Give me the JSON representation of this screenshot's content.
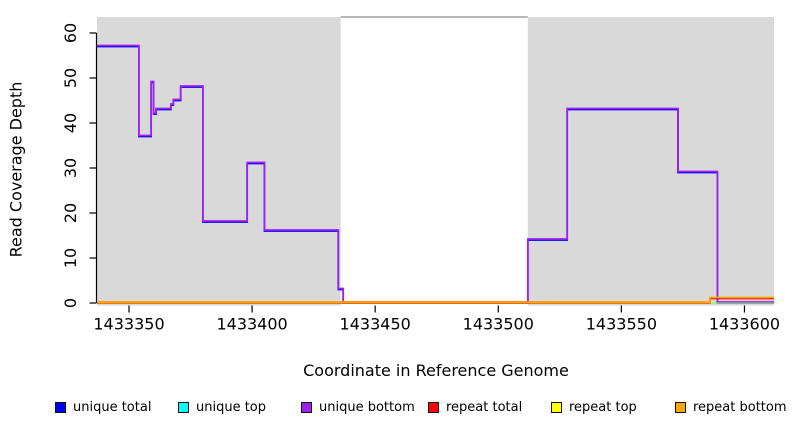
{
  "figure": {
    "xlabel": "Coordinate in Reference Genome",
    "ylabel": "Read Coverage Depth"
  },
  "legend": {
    "items": [
      {
        "label": "unique total",
        "color": "#0000FF"
      },
      {
        "label": "unique top",
        "color": "#00FFFF"
      },
      {
        "label": "unique bottom",
        "color": "#A020F0"
      },
      {
        "label": "repeat total",
        "color": "#FF0000"
      },
      {
        "label": "repeat top",
        "color": "#FFFF00"
      },
      {
        "label": "repeat bottom",
        "color": "#FFA500"
      }
    ]
  },
  "chart_data": {
    "type": "line",
    "subtype": "step",
    "title": "",
    "xlabel": "Coordinate in Reference Genome",
    "ylabel": "Read Coverage Depth",
    "xlim": [
      1433337,
      1433612
    ],
    "ylim": [
      0,
      62
    ],
    "xticks": [
      1433350,
      1433400,
      1433450,
      1433500,
      1433550,
      1433600
    ],
    "yticks": [
      0,
      10,
      20,
      30,
      40,
      50,
      60
    ],
    "grid": false,
    "legend_position": "bottom",
    "background": {
      "shaded_color": "#d9d9d9",
      "unshaded_region": [
        1433436,
        1433512
      ],
      "unshaded_color": "#ffffff",
      "region_border_color": "#8c8c8c"
    },
    "series": [
      {
        "name": "unique total",
        "color": "#0000FF",
        "steps": [
          [
            1433337,
            57
          ],
          [
            1433354,
            37
          ],
          [
            1433359,
            49
          ],
          [
            1433360,
            42
          ],
          [
            1433361,
            43
          ],
          [
            1433367,
            44
          ],
          [
            1433368,
            45
          ],
          [
            1433371,
            48
          ],
          [
            1433380,
            18
          ],
          [
            1433398,
            31
          ],
          [
            1433405,
            16
          ],
          [
            1433435,
            3
          ],
          [
            1433437,
            0
          ],
          [
            1433512,
            14
          ],
          [
            1433528,
            43
          ],
          [
            1433573,
            29
          ],
          [
            1433589,
            0
          ]
        ],
        "x_end": 1433612
      },
      {
        "name": "unique top",
        "color": "#00FFFF",
        "steps": [
          [
            1433337,
            0
          ]
        ],
        "x_end": 1433612
      },
      {
        "name": "unique bottom",
        "color": "#A020F0",
        "steps": [
          [
            1433337,
            57
          ],
          [
            1433354,
            37
          ],
          [
            1433359,
            49
          ],
          [
            1433360,
            42
          ],
          [
            1433361,
            43
          ],
          [
            1433367,
            44
          ],
          [
            1433368,
            45
          ],
          [
            1433371,
            48
          ],
          [
            1433380,
            18
          ],
          [
            1433398,
            31
          ],
          [
            1433405,
            16
          ],
          [
            1433435,
            3
          ],
          [
            1433437,
            0
          ],
          [
            1433512,
            14
          ],
          [
            1433528,
            43
          ],
          [
            1433573,
            29
          ],
          [
            1433589,
            0
          ]
        ],
        "x_end": 1433612
      },
      {
        "name": "repeat total",
        "color": "#FF0000",
        "steps": [
          [
            1433337,
            0
          ],
          [
            1433586,
            1
          ]
        ],
        "x_end": 1433612
      },
      {
        "name": "repeat top",
        "color": "#FFFF00",
        "steps": [
          [
            1433337,
            0
          ]
        ],
        "x_end": 1433612
      },
      {
        "name": "repeat bottom",
        "color": "#FFA500",
        "steps": [
          [
            1433337,
            0
          ],
          [
            1433586,
            1
          ]
        ],
        "x_end": 1433612
      }
    ]
  }
}
